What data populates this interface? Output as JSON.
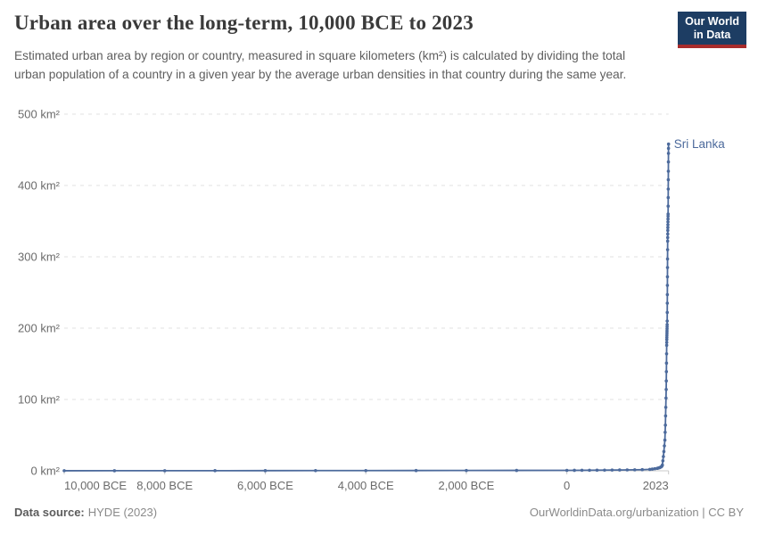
{
  "header": {
    "logo": {
      "line1": "Our World",
      "line2": "in Data",
      "bg_color": "#1d3d63",
      "accent_color": "#a82c2c"
    }
  },
  "footer": {
    "source_label": "Data source:",
    "source_value": "HYDE (2023)",
    "credit": "OurWorldinData.org/urbanization | CC BY"
  },
  "chart_data": {
    "type": "line",
    "title": "Urban area over the long-term, 10,000 BCE to 2023",
    "subtitle": "Estimated urban area by region or country, measured in square kilometers (km²) is calculated by dividing the total urban population of a country in a given year by the average urban densities in that country during the same year.",
    "unit": "km²",
    "xlim": [
      -10000,
      2023
    ],
    "ylim": [
      0,
      500
    ],
    "grid": "horizontal-dashed",
    "legend_position": "end-of-line-label",
    "line_color": "#4c6a9c",
    "grid_color": "#e0e0e0",
    "axis_color": "#c8c8c8",
    "tick_label_color": "#6b6b6b",
    "x_ticks": {
      "values": [
        -10000,
        -8000,
        -6000,
        -4000,
        -2000,
        0,
        2023
      ],
      "labels": [
        "10,000 BCE",
        "8,000 BCE",
        "6,000 BCE",
        "4,000 BCE",
        "2,000 BCE",
        "0",
        "2023"
      ]
    },
    "y_ticks": {
      "values": [
        0,
        100,
        200,
        300,
        400,
        500
      ],
      "labels": [
        "0 km²",
        "100 km²",
        "200 km²",
        "300 km²",
        "400 km²",
        "500 km²"
      ]
    },
    "series": [
      {
        "name": "Sri Lanka",
        "points": [
          [
            -10000,
            0.1
          ],
          [
            -9000,
            0.12
          ],
          [
            -8000,
            0.15
          ],
          [
            -7000,
            0.18
          ],
          [
            -6000,
            0.22
          ],
          [
            -5000,
            0.27
          ],
          [
            -4000,
            0.32
          ],
          [
            -3000,
            0.38
          ],
          [
            -2000,
            0.45
          ],
          [
            -1000,
            0.52
          ],
          [
            0,
            0.6
          ],
          [
            150,
            0.66
          ],
          [
            300,
            0.72
          ],
          [
            450,
            0.79
          ],
          [
            600,
            0.86
          ],
          [
            750,
            0.94
          ],
          [
            900,
            1.02
          ],
          [
            1050,
            1.12
          ],
          [
            1200,
            1.25
          ],
          [
            1350,
            1.4
          ],
          [
            1500,
            1.6
          ],
          [
            1650,
            2.0
          ],
          [
            1700,
            2.4
          ],
          [
            1750,
            2.9
          ],
          [
            1800,
            3.5
          ],
          [
            1825,
            4.0
          ],
          [
            1850,
            4.6
          ],
          [
            1875,
            5.5
          ],
          [
            1890,
            6.5
          ],
          [
            1900,
            8
          ],
          [
            1910,
            14
          ],
          [
            1920,
            20
          ],
          [
            1930,
            27
          ],
          [
            1940,
            35
          ],
          [
            1950,
            43
          ],
          [
            1955,
            54
          ],
          [
            1960,
            64
          ],
          [
            1964,
            77
          ],
          [
            1968,
            89
          ],
          [
            1972,
            102
          ],
          [
            1976,
            114
          ],
          [
            1978,
            126
          ],
          [
            1980,
            139
          ],
          [
            1982,
            151
          ],
          [
            1984,
            164
          ],
          [
            1986,
            176
          ],
          [
            1987,
            180
          ],
          [
            1988,
            184
          ],
          [
            1989,
            187
          ],
          [
            1990,
            190
          ],
          [
            1991,
            193
          ],
          [
            1992,
            196
          ],
          [
            1993,
            199
          ],
          [
            1994,
            202
          ],
          [
            1995,
            205
          ],
          [
            1996,
            210
          ],
          [
            1997,
            222
          ],
          [
            1998,
            235
          ],
          [
            1999,
            247
          ],
          [
            2000,
            260
          ],
          [
            2001,
            272
          ],
          [
            2002,
            285
          ],
          [
            2003,
            297
          ],
          [
            2004,
            310
          ],
          [
            2005,
            322
          ],
          [
            2006,
            327
          ],
          [
            2007,
            332
          ],
          [
            2008,
            337
          ],
          [
            2009,
            341
          ],
          [
            2010,
            345
          ],
          [
            2011,
            349
          ],
          [
            2012,
            353
          ],
          [
            2013,
            357
          ],
          [
            2014,
            360
          ],
          [
            2015,
            371
          ],
          [
            2016,
            383
          ],
          [
            2017,
            395
          ],
          [
            2018,
            408
          ],
          [
            2019,
            420
          ],
          [
            2020,
            433
          ],
          [
            2021,
            445
          ],
          [
            2022,
            452
          ],
          [
            2023,
            458
          ]
        ]
      }
    ]
  }
}
